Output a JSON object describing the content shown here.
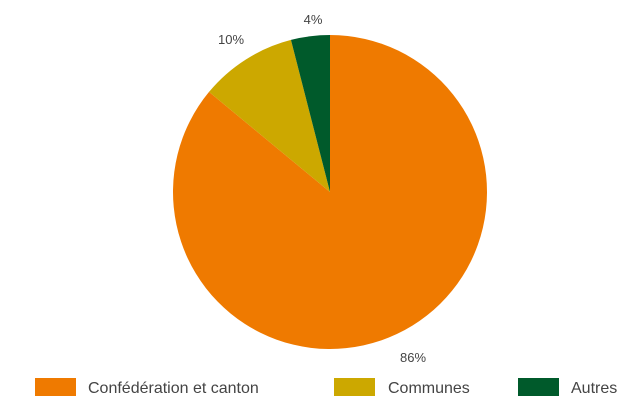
{
  "chart_data": {
    "type": "pie",
    "title": "",
    "slices": [
      {
        "label": "Confédération et canton",
        "value": 86,
        "display": "86%",
        "color": "#EF7A00"
      },
      {
        "label": "Communes",
        "value": 10,
        "display": "10%",
        "color": "#CCA800"
      },
      {
        "label": "Autres",
        "value": 4,
        "display": "4%",
        "color": "#005A2B"
      }
    ],
    "start_angle_deg": 0,
    "direction": "clockwise",
    "legend_position": "bottom"
  }
}
